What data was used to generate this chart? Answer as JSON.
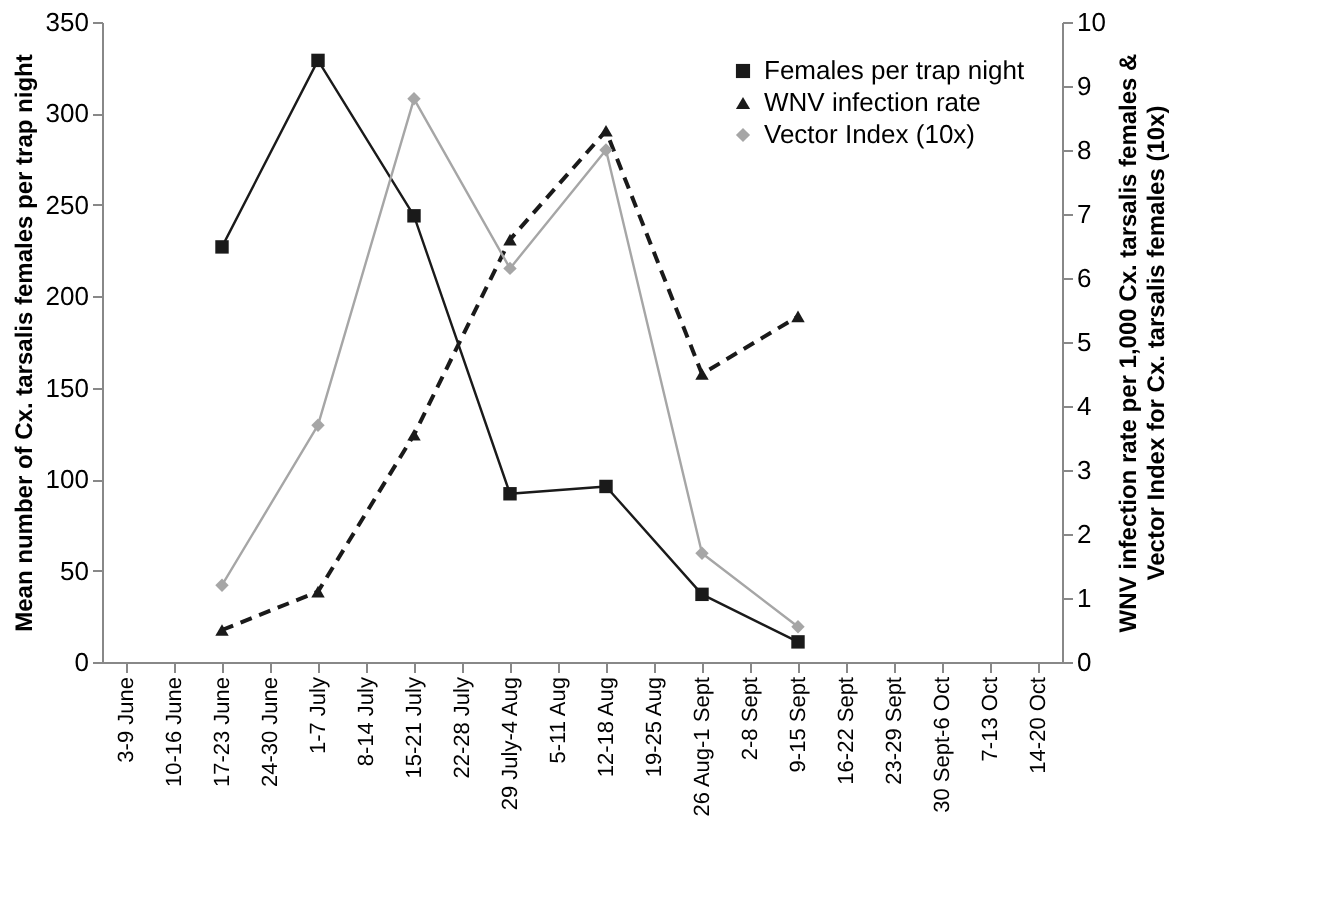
{
  "chart_data": {
    "type": "line",
    "ylabel": "Mean number of Cx. tarsalis females per trap night",
    "y2label": "WNV infection rate per 1,000 Cx. tarsalis females &\nVector Index for Cx. tarsalis females (10x)",
    "categories": [
      "3-9 June",
      "10-16 June",
      "17-23 June",
      "24-30 June",
      "1-7 July",
      "8-14 July",
      "15-21 July",
      "22-28 July",
      "29 July-4 Aug",
      "5-11 Aug",
      "12-18 Aug",
      "19-25 Aug",
      "26 Aug-1 Sept",
      "2-8 Sept",
      "9-15 Sept",
      "16-22 Sept",
      "23-29 Sept",
      "30 Sept-6 Oct",
      "7-13 Oct",
      "14-20 Oct"
    ],
    "series": [
      {
        "name": "Females per trap night",
        "color": "#1a1a1a",
        "marker": "square",
        "line_style": "solid",
        "values": [
          null,
          null,
          227,
          null,
          329,
          null,
          244,
          null,
          92,
          null,
          96,
          null,
          37,
          null,
          11,
          null,
          null,
          null,
          null,
          null
        ]
      },
      {
        "name": "WNV infection rate",
        "color": "#1a1a1a",
        "marker": "triangle",
        "line_style": "dashed",
        "axis": "y2",
        "values": [
          null,
          null,
          0.5,
          null,
          1.1,
          null,
          3.55,
          null,
          6.6,
          null,
          8.3,
          null,
          4.5,
          null,
          5.4,
          null,
          null,
          null,
          null,
          null
        ]
      },
      {
        "name": "Vector Index (10x)",
        "color": "#a6a6a6",
        "marker": "diamond",
        "line_style": "solid",
        "axis": "y2",
        "values": [
          null,
          null,
          1.2,
          null,
          3.7,
          null,
          8.8,
          null,
          6.15,
          null,
          8.0,
          null,
          1.7,
          null,
          0.55,
          null,
          null,
          null,
          null,
          null
        ]
      }
    ],
    "ylim": [
      0,
      350
    ],
    "yticks": [
      0,
      50,
      100,
      150,
      200,
      250,
      300,
      350
    ],
    "y2lim": [
      0,
      10
    ],
    "y2ticks": [
      0,
      1,
      2,
      3,
      4,
      5,
      6,
      7,
      8,
      9,
      10
    ],
    "grid": false,
    "legend": "top right"
  }
}
